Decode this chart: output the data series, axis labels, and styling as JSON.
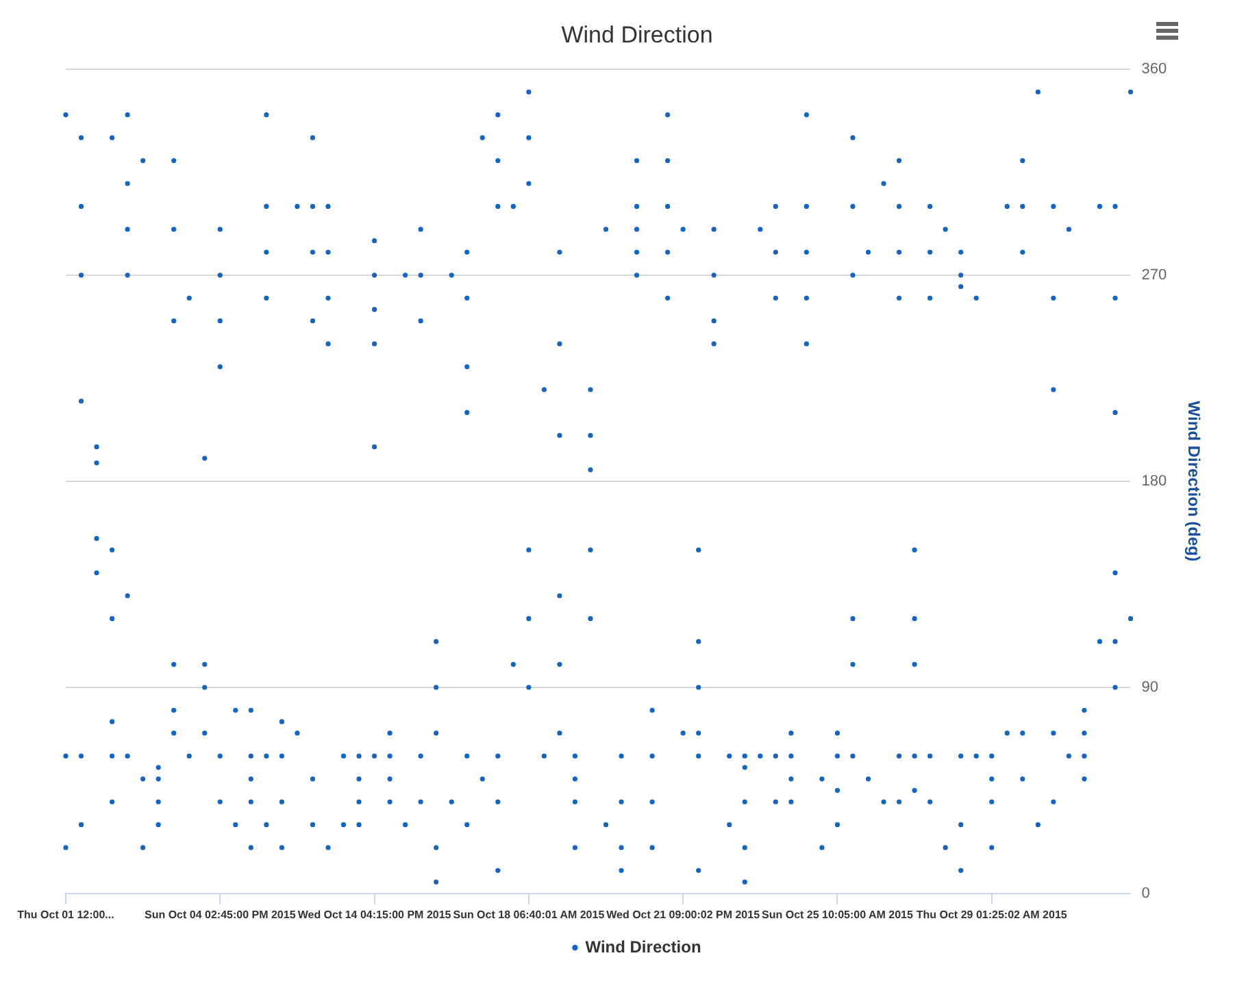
{
  "chart_data": {
    "type": "scatter",
    "title": "Wind Direction",
    "ylabel": "Wind Direction (deg)",
    "categories": [
      "Thu Oct 01 12:00...",
      null,
      null,
      null,
      null,
      null,
      null,
      null,
      null,
      null,
      "Sun Oct 04 02:45:00 PM 2015",
      null,
      null,
      null,
      null,
      null,
      null,
      null,
      null,
      null,
      "Wed Oct 14 04:15:00 PM 2015",
      null,
      null,
      null,
      null,
      null,
      null,
      null,
      null,
      null,
      "Sun Oct 18 06:40:01 AM 2015",
      null,
      null,
      null,
      null,
      null,
      null,
      null,
      null,
      null,
      "Wed Oct 21 09:00:02 PM 2015",
      null,
      null,
      null,
      null,
      null,
      null,
      null,
      null,
      null,
      "Sun Oct 25 10:05:00 AM 2015",
      null,
      null,
      null,
      null,
      null,
      null,
      null,
      null,
      null,
      "Thu Oct 29 01:25:02 AM 2015",
      null,
      null,
      null,
      null,
      null,
      null,
      null,
      null,
      null
    ],
    "ylim": [
      0,
      360
    ],
    "yticks": [
      0,
      90,
      180,
      270,
      360
    ],
    "grid": "y",
    "legend": "bottom",
    "marker": "circle",
    "series": [
      {
        "name": "Wind Direction",
        "color": "#1565c0",
        "values": [
          340,
          330,
          195,
          150,
          340,
          320,
          40,
          320,
          260,
          90,
          290,
          30,
          60,
          340,
          60,
          300,
          330,
          300,
          60,
          60,
          285,
          60,
          270,
          290,
          110,
          270,
          280,
          330,
          340,
          300,
          350,
          220,
          280,
          60,
          220,
          290,
          60,
          320,
          60,
          340,
          290,
          110,
          290,
          60,
          40,
          290,
          300,
          60,
          340,
          50,
          60,
          330,
          280,
          310,
          320,
          150,
          300,
          290,
          280,
          260,
          60,
          300,
          320,
          350,
          300,
          290,
          60,
          300,
          300,
          350
        ]
      },
      {
        "color": "#1565c0",
        "values": [
          60,
          300,
          188,
          120,
          310,
          50,
          55,
          290,
          60,
          70,
          270,
          80,
          80,
          300,
          40,
          70,
          300,
          280,
          30,
          50,
          270,
          40,
          30,
          270,
          90,
          40,
          260,
          50,
          320,
          100,
          330,
          60,
          240,
          40,
          200,
          30,
          40,
          300,
          40,
          300,
          70,
          90,
          270,
          30,
          20,
          60,
          280,
          50,
          300,
          20,
          45,
          300,
          50,
          40,
          300,
          120,
          280,
          20,
          270,
          60,
          40,
          70,
          300,
          30,
          260,
          60,
          70,
          110,
          260,
          120
        ]
      },
      {
        "color": "#1565c0",
        "values": [
          20,
          270,
          140,
          60,
          290,
          20,
          30,
          250,
          null,
          100,
          250,
          null,
          40,
          280,
          75,
          null,
          280,
          260,
          null,
          40,
          255,
          50,
          null,
          250,
          70,
          null,
          230,
          null,
          300,
          null,
          310,
          null,
          200,
          20,
          185,
          null,
          20,
          280,
          20,
          280,
          null,
          70,
          250,
          null,
          5,
          null,
          260,
          40,
          280,
          null,
          30,
          270,
          null,
          null,
          280,
          100,
          260,
          null,
          265,
          null,
          20,
          null,
          280,
          null,
          220,
          null,
          50,
          null,
          210,
          null
        ]
      },
      {
        "color": "#1565c0",
        "values": [
          null,
          215,
          155,
          40,
          270,
          null,
          50,
          100,
          null,
          190,
          230,
          null,
          20,
          260,
          20,
          null,
          250,
          240,
          null,
          30,
          240,
          70,
          null,
          60,
          20,
          null,
          210,
          null,
          60,
          null,
          150,
          null,
          130,
          50,
          150,
          null,
          10,
          270,
          80,
          260,
          null,
          60,
          240,
          null,
          60,
          null,
          60,
          70,
          260,
          null,
          70,
          120,
          null,
          null,
          260,
          60,
          60,
          null,
          60,
          null,
          50,
          null,
          70,
          null,
          70,
          null,
          80,
          null,
          140,
          null
        ]
      },
      {
        "color": "#1565c0",
        "values": [
          null,
          60,
          null,
          330,
          130,
          null,
          null,
          80,
          null,
          null,
          60,
          null,
          50,
          60,
          null,
          null,
          50,
          20,
          null,
          null,
          195,
          null,
          null,
          40,
          5,
          null,
          60,
          null,
          40,
          null,
          120,
          null,
          100,
          null,
          120,
          null,
          null,
          290,
          null,
          320,
          null,
          10,
          null,
          null,
          55,
          null,
          40,
          null,
          240,
          null,
          null,
          100,
          null,
          null,
          60,
          45,
          40,
          null,
          30,
          null,
          null,
          null,
          50,
          null,
          40,
          null,
          null,
          null,
          110,
          null
        ]
      },
      {
        "color": "#1565c0",
        "values": [
          null,
          30,
          null,
          75,
          60,
          null,
          null,
          70,
          null,
          null,
          40,
          null,
          null,
          30,
          null,
          null,
          30,
          null,
          null,
          null,
          60,
          null,
          null,
          null,
          null,
          null,
          30,
          null,
          10,
          null,
          90,
          null,
          70,
          null,
          null,
          null,
          null,
          null,
          null,
          null,
          null,
          150,
          null,
          null,
          null,
          null,
          null,
          null,
          null,
          null,
          null,
          60,
          null,
          null,
          40,
          null,
          null,
          null,
          10,
          null,
          null,
          null,
          null,
          null,
          null,
          null,
          null,
          null,
          90,
          null
        ]
      }
    ]
  }
}
